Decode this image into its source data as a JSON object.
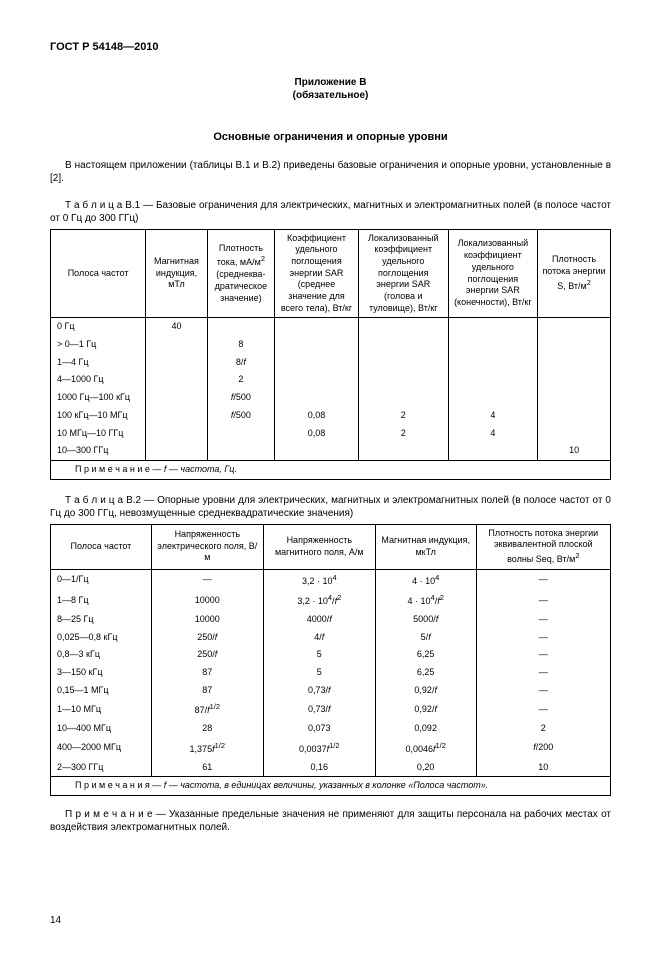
{
  "doc_id": "ГОСТ Р 54148—2010",
  "appendix_line1": "Приложение В",
  "appendix_line2": "(обязательное)",
  "main_title": "Основные ограничения и опорные уровни",
  "intro": "В настоящем приложении (таблицы В.1 и В.2) приведены базовые ограничения и опорные уровни, установленные в [2].",
  "t1_caption_pre": "Т а б л и ц а",
  "t1_caption": "  В.1 — Базовые ограничения для электрических, магнитных и электромагнитных полей (в полосе частот от 0 Гц до 300 ГГц)",
  "t1": {
    "headers": {
      "c1": "Полоса частот",
      "c2": "Магнитная индукция, мТл",
      "c3_l1": "Плотность тока, мА/м",
      "c3_l2": "(среднеква-дратическое значение)",
      "c4": "Коэффициент удельного поглощения энергии SAR (среднее значение для всего тела), Вт/кг",
      "c5": "Локализованный коэффициент удельного поглощения энергии SAR (голова и туловище), Вт/кг",
      "c6": "Локализованный коэффициент удельного поглощения энергии SAR (конечности), Вт/кг",
      "c7_l1": "Плотность потока энергии S, Вт/м"
    },
    "rows": [
      {
        "f": "0 Гц",
        "b": "40",
        "j": "",
        "sar1": "",
        "sar2": "",
        "sar3": "",
        "s": ""
      },
      {
        "f": "> 0—1 Гц",
        "b": "",
        "j": "8",
        "sar1": "",
        "sar2": "",
        "sar3": "",
        "s": ""
      },
      {
        "f": "1—4 Гц",
        "b": "",
        "j": "8/f",
        "sar1": "",
        "sar2": "",
        "sar3": "",
        "s": ""
      },
      {
        "f": "4—1000 Гц",
        "b": "",
        "j": "2",
        "sar1": "",
        "sar2": "",
        "sar3": "",
        "s": ""
      },
      {
        "f": "1000 Гц—100 кГц",
        "b": "",
        "j": "f/500",
        "sar1": "",
        "sar2": "",
        "sar3": "",
        "s": ""
      },
      {
        "f": "100 кГц—10 МГц",
        "b": "",
        "j": "f/500",
        "sar1": "0,08",
        "sar2": "2",
        "sar3": "4",
        "s": ""
      },
      {
        "f": "10 МГц—10 ГГц",
        "b": "",
        "j": "",
        "sar1": "0,08",
        "sar2": "2",
        "sar3": "4",
        "s": ""
      },
      {
        "f": "10—300 ГГц",
        "b": "",
        "j": "",
        "sar1": "",
        "sar2": "",
        "sar3": "",
        "s": "10"
      }
    ],
    "note_pre": "П р и м е ч а н и е — ",
    "note_body": "f — частота, Гц."
  },
  "t2_caption_pre": "Т а б л и ц а",
  "t2_caption": "  В.2 — Опорные уровни для электрических, магнитных и электромагнитных полей (в полосе частот от 0 Гц до 300 ГГц, невозмущенные среднеквадратические значения)",
  "t2": {
    "headers": {
      "c1": "Полоса частот",
      "c2": "Напряженность электрического поля, В/м",
      "c3": "Напряженность магнитного поля, А/м",
      "c4": "Магнитная индукция, мкТл",
      "c5_l1": "Плотность потока энергии эквивалентной плоской волны Seq, Вт/м"
    },
    "rows": [
      {
        "f": "0—1/Гц",
        "e": "—",
        "h": "3,2 · 10⁴",
        "b": "4 · 10⁴",
        "s": "—"
      },
      {
        "f": "1—8 Гц",
        "e": "10000",
        "h": "3,2 · 10⁴/f²",
        "b": "4 · 10⁴/f²",
        "s": "—"
      },
      {
        "f": "8—25 Гц",
        "e": "10000",
        "h": "4000/f",
        "b": "5000/f",
        "s": "—"
      },
      {
        "f": "0,025—0,8 кГц",
        "e": "250/f",
        "h": "4/f",
        "b": "5/f",
        "s": "—"
      },
      {
        "f": "0,8—3 кГц",
        "e": "250/f",
        "h": "5",
        "b": "6,25",
        "s": "—"
      },
      {
        "f": "3—150 кГц",
        "e": "87",
        "h": "5",
        "b": "6,25",
        "s": "—"
      },
      {
        "f": "0,15—1 МГц",
        "e": "87",
        "h": "0,73/f",
        "b": "0,92/f",
        "s": "—"
      },
      {
        "f": "1—10 МГц",
        "e": "87/f^1/2",
        "h": "0,73/f",
        "b": "0,92/f",
        "s": "—"
      },
      {
        "f": "10—400 МГц",
        "e": "28",
        "h": "0,073",
        "b": "0,092",
        "s": "2"
      },
      {
        "f": "400—2000 МГц",
        "e": "1,375f^1/2",
        "h": "0,0037f^1/2",
        "b": "0,0046f^1/2",
        "s": "f/200"
      },
      {
        "f": "2—300 ГГц",
        "e": "61",
        "h": "0,16",
        "b": "0,20",
        "s": "10"
      }
    ],
    "note_pre": "П р и м е ч а н и я — ",
    "note_body": "f — частота, в единицах величины, указанных в колонке «Полоса частот»."
  },
  "bottom_note_pre": "П р и м е ч а н и е — ",
  "bottom_note": "Указанные предельные значения не применяют для защиты персонала на рабочих местах от воздействия электромагнитных полей.",
  "page_number": "14"
}
